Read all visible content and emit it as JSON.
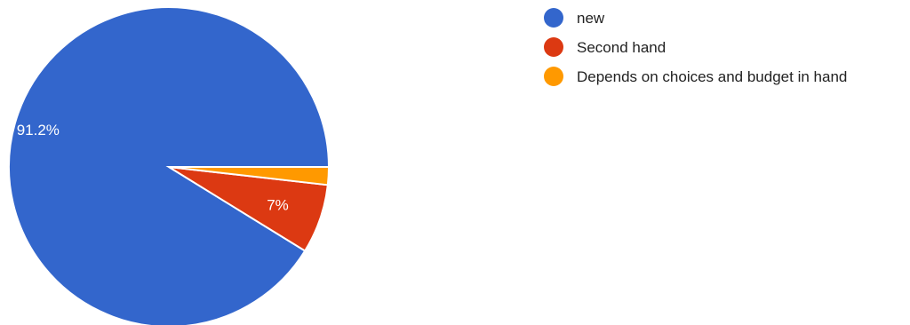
{
  "chart_data": {
    "type": "pie",
    "title": "",
    "start_angle_deg": 0,
    "direction": "counterclockwise",
    "slices": [
      {
        "label": "new",
        "value": 91.2,
        "display": "91.2%",
        "color": "#3366cc"
      },
      {
        "label": "Second hand",
        "value": 7.0,
        "display": "7%",
        "color": "#dc3912"
      },
      {
        "label": "Depends on choices and budget in hand",
        "value": 1.8,
        "display": "",
        "color": "#ff9900"
      }
    ],
    "legend_position": "right"
  }
}
